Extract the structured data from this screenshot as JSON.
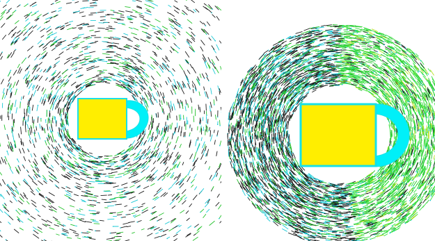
{
  "colors": {
    "background": "#ffffff",
    "vector_dark": "#1a1a1a",
    "vector_cyan": "#19c9d6",
    "vector_green": "#22c22a",
    "vector_bright_green": "#38e040",
    "vector_yellow_green": "#b8e020",
    "body_fill": "#ffee00",
    "body_outline": "#19e0e6",
    "attachment_fill": "#00f0f8"
  },
  "panels": [
    {
      "density": "sparse",
      "green_sector": false
    },
    {
      "density": "dense",
      "green_sector": true
    }
  ]
}
